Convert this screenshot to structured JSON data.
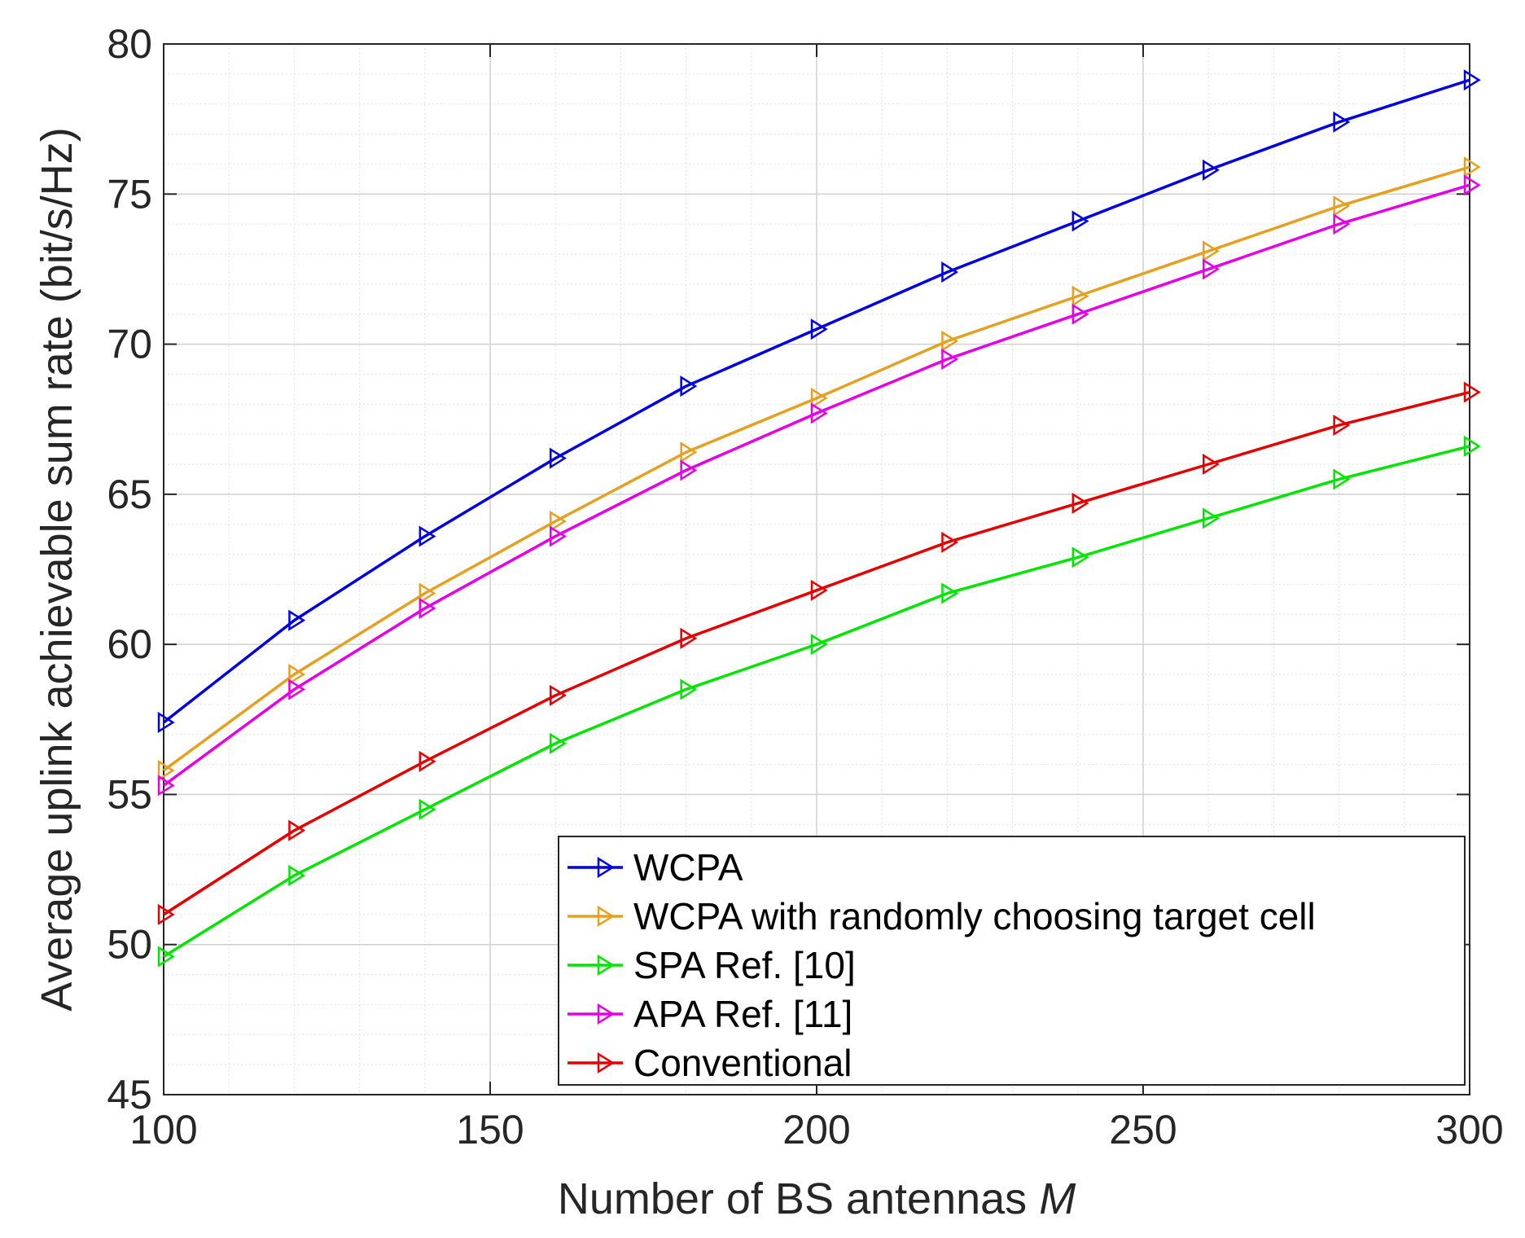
{
  "chart_data": {
    "type": "line",
    "xlabel": "Number of BS antennas",
    "xlabel_var": "M",
    "ylabel": "Average uplink achievable sum rate (bit/s/Hz)",
    "xlim": [
      100,
      300
    ],
    "ylim": [
      45,
      80
    ],
    "xticks": [
      "100",
      "150",
      "200",
      "250",
      "300"
    ],
    "yticks": [
      "45",
      "50",
      "55",
      "60",
      "65",
      "70",
      "75",
      "80"
    ],
    "grid": true,
    "minor_grid": true,
    "legend_position": "bottom-right",
    "marker": "triangle-right",
    "x": [
      100,
      120,
      140,
      160,
      180,
      200,
      220,
      240,
      260,
      280,
      300
    ],
    "series": [
      {
        "name": "WCPA",
        "color": "#0000e6",
        "values": [
          57.4,
          60.8,
          63.6,
          66.2,
          68.6,
          70.5,
          72.4,
          74.1,
          75.8,
          77.4,
          78.8
        ]
      },
      {
        "name": "WCPA with randomly choosing target cell",
        "color": "#e6a020",
        "values": [
          55.8,
          59.0,
          61.7,
          64.1,
          66.4,
          68.2,
          70.1,
          71.6,
          73.1,
          74.6,
          75.9
        ]
      },
      {
        "name": "SPA  Ref. [10]",
        "color": "#00e600",
        "values": [
          49.6,
          52.3,
          54.5,
          56.7,
          58.5,
          60.0,
          61.7,
          62.9,
          64.2,
          65.5,
          66.6
        ]
      },
      {
        "name": "APA  Ref. [11]",
        "color": "#e600e6",
        "values": [
          55.3,
          58.5,
          61.2,
          63.6,
          65.8,
          67.7,
          69.5,
          71.0,
          72.5,
          74.0,
          75.3
        ]
      },
      {
        "name": "Conventional",
        "color": "#e60000",
        "values": [
          51.0,
          53.8,
          56.1,
          58.3,
          60.2,
          61.8,
          63.4,
          64.7,
          66.0,
          67.3,
          68.4
        ]
      }
    ]
  }
}
